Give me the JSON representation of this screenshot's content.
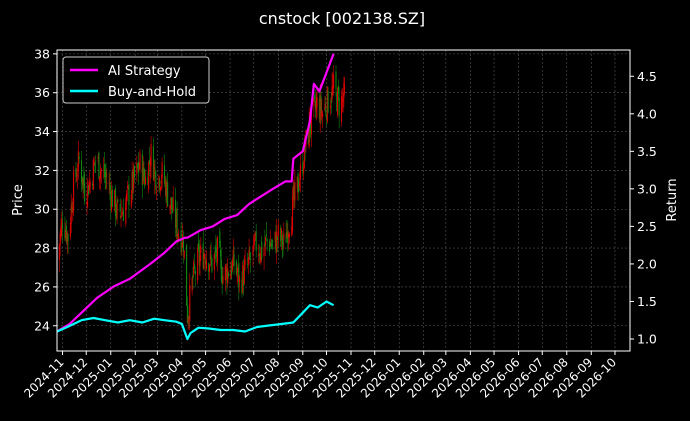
{
  "chart_data": {
    "type": "line",
    "title": "cnstock [002138.SZ]",
    "ylabel_left": "Price",
    "ylabel_right": "Return",
    "xlabel": "",
    "grid": true,
    "legend_position": "top-left",
    "x_tick_labels": [
      "2024-11",
      "2024-12",
      "2025-01",
      "2025-02",
      "2025-03",
      "2025-04",
      "2025-05",
      "2025-06",
      "2025-07",
      "2025-08",
      "2025-09",
      "2025-10",
      "2025-11",
      "2025-12",
      "2026-01",
      "2026-02",
      "2026-03",
      "2026-04",
      "2026-05",
      "2026-06",
      "2026-07",
      "2026-08",
      "2026-09",
      "2026-10"
    ],
    "y_left_ticks": [
      24,
      26,
      28,
      30,
      32,
      34,
      36,
      38
    ],
    "y_left_range": [
      22.7,
      38.2
    ],
    "y_right_ticks": [
      1.0,
      1.5,
      2.0,
      2.5,
      3.0,
      3.5,
      4.0,
      4.5
    ],
    "y_right_range": [
      0.84,
      4.85
    ],
    "x_range": [
      "2024-10-25",
      "2026-10-20"
    ],
    "candles": {
      "up_color": "#dd0000",
      "down_color": "#118811",
      "date_range": [
        "2024-10-25",
        "2025-10-24"
      ],
      "close_path": [
        [
          "2024-10-25",
          27.4
        ],
        [
          "2024-11-01",
          29.5
        ],
        [
          "2024-11-08",
          28.6
        ],
        [
          "2024-11-15",
          31.2
        ],
        [
          "2024-11-22",
          32.5
        ],
        [
          "2024-11-29",
          31.0
        ],
        [
          "2024-12-06",
          31.4
        ],
        [
          "2024-12-13",
          32.6
        ],
        [
          "2024-12-20",
          32.0
        ],
        [
          "2024-12-27",
          31.5
        ],
        [
          "2025-01-03",
          30.6
        ],
        [
          "2025-01-10",
          29.8
        ],
        [
          "2025-01-17",
          30.0
        ],
        [
          "2025-01-24",
          30.8
        ],
        [
          "2025-02-07",
          32.3
        ],
        [
          "2025-02-14",
          31.5
        ],
        [
          "2025-02-21",
          32.8
        ],
        [
          "2025-02-28",
          31.6
        ],
        [
          "2025-03-07",
          31.8
        ],
        [
          "2025-03-14",
          30.8
        ],
        [
          "2025-03-21",
          29.8
        ],
        [
          "2025-03-28",
          28.8
        ],
        [
          "2025-04-03",
          28.4
        ],
        [
          "2025-04-08",
          24.6
        ],
        [
          "2025-04-15",
          26.4
        ],
        [
          "2025-04-22",
          27.4
        ],
        [
          "2025-04-30",
          27.8
        ],
        [
          "2025-05-09",
          27.2
        ],
        [
          "2025-05-16",
          27.8
        ],
        [
          "2025-05-23",
          26.6
        ],
        [
          "2025-05-30",
          26.9
        ],
        [
          "2025-06-06",
          27.2
        ],
        [
          "2025-06-13",
          26.2
        ],
        [
          "2025-06-20",
          26.8
        ],
        [
          "2025-06-27",
          27.4
        ],
        [
          "2025-07-04",
          28.2
        ],
        [
          "2025-07-11",
          27.8
        ],
        [
          "2025-07-18",
          28.4
        ],
        [
          "2025-07-25",
          28.1
        ],
        [
          "2025-08-01",
          28.6
        ],
        [
          "2025-08-08",
          28.2
        ],
        [
          "2025-08-15",
          29.4
        ],
        [
          "2025-08-22",
          30.6
        ],
        [
          "2025-08-29",
          31.8
        ],
        [
          "2025-09-05",
          33.4
        ],
        [
          "2025-09-12",
          34.6
        ],
        [
          "2025-09-19",
          35.4
        ],
        [
          "2025-09-26",
          35.0
        ],
        [
          "2025-10-10",
          36.2
        ],
        [
          "2025-10-17",
          35.4
        ],
        [
          "2025-10-24",
          35.8
        ]
      ]
    },
    "series": [
      {
        "name": "AI Strategy",
        "axis": "right",
        "color": "#ff00ff",
        "points": [
          [
            "2024-10-25",
            1.1
          ],
          [
            "2024-11-10",
            1.2
          ],
          [
            "2024-11-25",
            1.35
          ],
          [
            "2024-12-15",
            1.55
          ],
          [
            "2025-01-05",
            1.7
          ],
          [
            "2025-01-25",
            1.8
          ],
          [
            "2025-02-20",
            2.0
          ],
          [
            "2025-03-10",
            2.15
          ],
          [
            "2025-03-25",
            2.3
          ],
          [
            "2025-04-05",
            2.35
          ],
          [
            "2025-04-08",
            2.35
          ],
          [
            "2025-04-25",
            2.45
          ],
          [
            "2025-05-10",
            2.5
          ],
          [
            "2025-05-25",
            2.6
          ],
          [
            "2025-06-10",
            2.65
          ],
          [
            "2025-06-25",
            2.8
          ],
          [
            "2025-07-10",
            2.9
          ],
          [
            "2025-07-25",
            3.0
          ],
          [
            "2025-08-10",
            3.1
          ],
          [
            "2025-08-18",
            3.1
          ],
          [
            "2025-08-20",
            3.4
          ],
          [
            "2025-09-01",
            3.5
          ],
          [
            "2025-09-10",
            3.9
          ],
          [
            "2025-09-15",
            4.4
          ],
          [
            "2025-09-22",
            4.3
          ],
          [
            "2025-10-01",
            4.55
          ],
          [
            "2025-10-10",
            4.8
          ]
        ]
      },
      {
        "name": "Buy-and-Hold",
        "axis": "right",
        "color": "#00ffff",
        "points": [
          [
            "2024-10-25",
            1.1
          ],
          [
            "2024-11-05",
            1.15
          ],
          [
            "2024-11-15",
            1.2
          ],
          [
            "2024-11-25",
            1.25
          ],
          [
            "2024-12-10",
            1.28
          ],
          [
            "2024-12-25",
            1.25
          ],
          [
            "2025-01-10",
            1.22
          ],
          [
            "2025-01-25",
            1.25
          ],
          [
            "2025-02-10",
            1.22
          ],
          [
            "2025-02-25",
            1.27
          ],
          [
            "2025-03-10",
            1.25
          ],
          [
            "2025-03-25",
            1.23
          ],
          [
            "2025-04-01",
            1.2
          ],
          [
            "2025-04-08",
            1.0
          ],
          [
            "2025-04-12",
            1.08
          ],
          [
            "2025-04-22",
            1.15
          ],
          [
            "2025-05-05",
            1.14
          ],
          [
            "2025-05-20",
            1.12
          ],
          [
            "2025-06-05",
            1.12
          ],
          [
            "2025-06-20",
            1.1
          ],
          [
            "2025-07-05",
            1.16
          ],
          [
            "2025-07-20",
            1.18
          ],
          [
            "2025-08-05",
            1.2
          ],
          [
            "2025-08-20",
            1.22
          ],
          [
            "2025-09-01",
            1.35
          ],
          [
            "2025-09-10",
            1.45
          ],
          [
            "2025-09-20",
            1.42
          ],
          [
            "2025-10-01",
            1.5
          ],
          [
            "2025-10-10",
            1.45
          ]
        ]
      }
    ]
  }
}
